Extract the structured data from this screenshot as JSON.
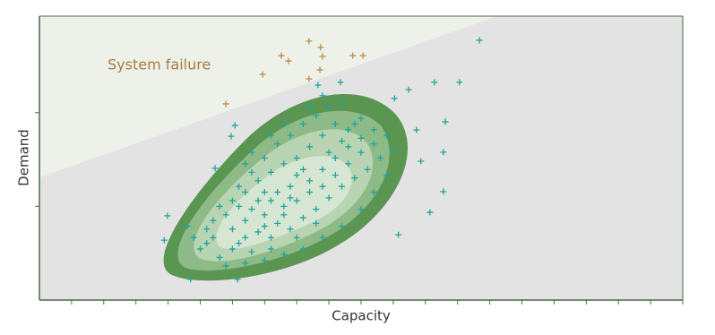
{
  "chart_data": {
    "type": "scatter",
    "x_label": "Capacity",
    "y_label": "Demand",
    "annotation": "System failure",
    "xlim": [
      0,
      100
    ],
    "ylim": [
      0,
      100
    ],
    "xticks": [
      5,
      10,
      15,
      20,
      25,
      30,
      35,
      40,
      45,
      50,
      55,
      60,
      65,
      70,
      75,
      80,
      85,
      90,
      95,
      100
    ],
    "yticks": [
      33,
      66
    ],
    "failure_boundary": {
      "x": [
        0,
        71.2
      ],
      "y": [
        43.2,
        100
      ],
      "color": "#edf1ea"
    },
    "series": [
      {
        "color": "#c08a4a",
        "x": [
          41.9,
          43.7,
          37.6,
          38.7,
          44.0,
          48.7,
          50.3,
          34.7,
          43.6,
          29.0,
          41.9
        ],
        "y": [
          91.2,
          89.0,
          86.1,
          84.2,
          85.8,
          86.1,
          86.1,
          79.5,
          81.1,
          69.1,
          77.9
        ]
      },
      {
        "color": "#22a39c",
        "x": [
          68.4,
          65.3,
          61.4,
          57.4,
          63.1,
          62.8,
          59.3,
          62.8,
          60.7,
          55.8,
          19.9,
          19.4,
          23.5,
          30.8,
          27.3,
          30.4,
          29.8,
          43.3,
          46.8,
          55.2,
          58.6,
          25,
          27,
          28,
          30,
          31,
          32,
          33,
          34,
          35,
          36,
          37,
          38,
          39,
          40,
          41,
          42,
          43,
          44,
          45,
          46,
          47,
          48,
          49,
          50,
          51,
          52,
          29,
          30,
          32,
          34,
          36,
          38,
          40,
          42,
          44,
          46,
          48,
          50,
          27,
          26,
          24,
          23,
          28,
          31,
          33,
          35,
          37,
          39,
          41,
          43,
          45,
          47,
          36,
          37,
          38,
          34,
          33,
          35,
          39,
          40,
          42,
          44,
          46,
          48,
          50,
          52,
          53,
          54,
          29,
          32,
          35,
          38,
          41,
          44,
          47,
          50,
          52,
          54,
          55,
          30,
          32,
          36,
          40,
          43,
          26,
          31,
          35,
          39,
          41,
          45,
          47,
          49,
          33,
          36,
          32,
          38,
          42,
          44
        ],
        "y": [
          91.5,
          76.7,
          76.7,
          74.1,
          62.8,
          52.1,
          48.9,
          38.2,
          30.9,
          23.0,
          29.7,
          21.1,
          7.3,
          7.3,
          46.4,
          61.5,
          57.7,
          75.7,
          76.7,
          71.0,
          59.9,
          18,
          22,
          15,
          25,
          20,
          28,
          17,
          24,
          30,
          22,
          27,
          33,
          25,
          35,
          29,
          38,
          32,
          40,
          36,
          44,
          40,
          48,
          43,
          52,
          46,
          55,
          30,
          35,
          38,
          42,
          45,
          48,
          50,
          54,
          58,
          62,
          60,
          64,
          28,
          25,
          22,
          26,
          33,
          40,
          45,
          50,
          55,
          58,
          62,
          65,
          68,
          70,
          35,
          38,
          30,
          35,
          32,
          38,
          40,
          44,
          42,
          46,
          50,
          54,
          57,
          60,
          50,
          58,
          12,
          13,
          14,
          16,
          18,
          22,
          26,
          32,
          38,
          44,
          53,
          18,
          22,
          18,
          22,
          27,
          20,
          33,
          26,
          36,
          46,
          52,
          56,
          62,
          52,
          58,
          48,
          62,
          68,
          72
        ]
      }
    ]
  }
}
